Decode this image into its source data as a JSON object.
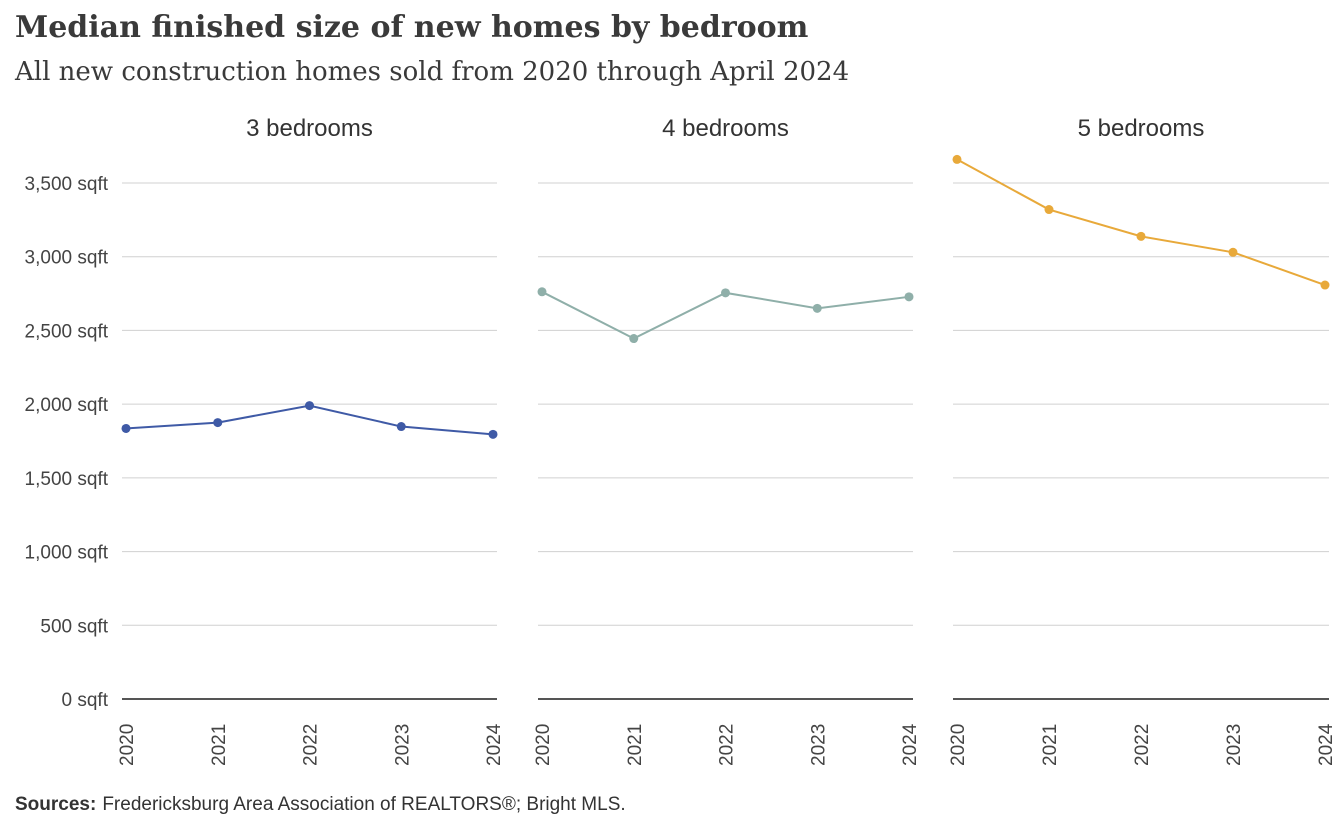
{
  "header": {
    "title": "Median finished size of new homes by bedroom",
    "subtitle": "All new construction homes sold from 2020 through April 2024"
  },
  "footer": {
    "label": "Sources:",
    "text": "Fredericksburg  Area Association of REALTORS®;  Bright MLS."
  },
  "chart_data": {
    "type": "line",
    "title": "Median finished size of new homes by bedroom",
    "subtitle": "All new construction homes sold from 2020 through April 2024",
    "x": [
      "2020",
      "2021",
      "2022",
      "2023",
      "2024"
    ],
    "ylim": [
      0,
      3500
    ],
    "yticks": [
      0,
      500,
      1000,
      1500,
      2000,
      2500,
      3000,
      3500
    ],
    "ytick_labels": [
      "0 sqft",
      "500 sqft",
      "1,000 sqft",
      "1,500 sqft",
      "2,000 sqft",
      "2,500 sqft",
      "3,000 sqft",
      "3,500 sqft"
    ],
    "grid": true,
    "legend": "none",
    "panels": [
      {
        "name": "3 bedrooms",
        "color": "#3f5aa6",
        "values": [
          1835,
          1875,
          1990,
          1848,
          1795
        ]
      },
      {
        "name": "4 bedrooms",
        "color": "#8fafa9",
        "values": [
          2762,
          2445,
          2755,
          2650,
          2728
        ]
      },
      {
        "name": "5 bedrooms",
        "color": "#e8a93a",
        "values": [
          3660,
          3320,
          3138,
          3030,
          2808
        ]
      }
    ]
  }
}
